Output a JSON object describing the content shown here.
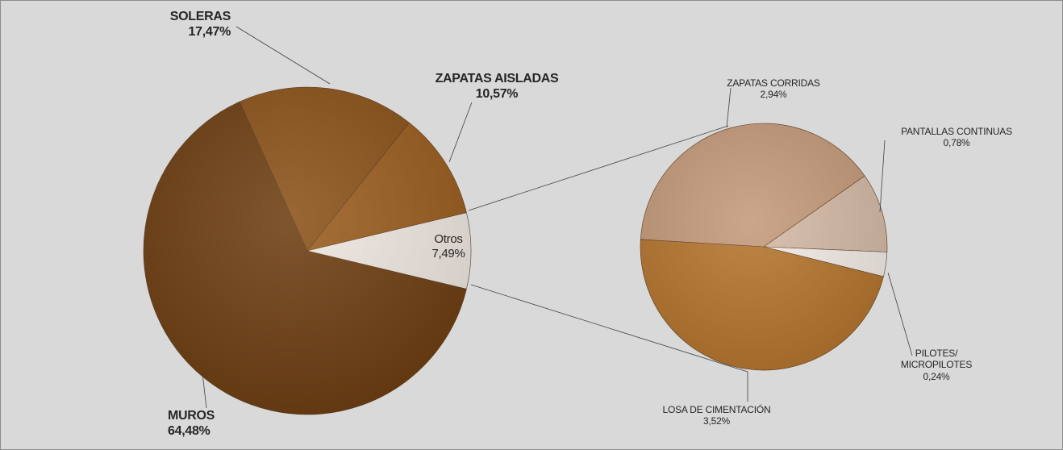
{
  "chart_data": [
    {
      "type": "pie",
      "categories": [
        "MUROS",
        "SOLERAS",
        "ZAPATAS AISLADAS",
        "Otros"
      ],
      "values": [
        64.48,
        17.47,
        10.57,
        7.49
      ],
      "value_labels": [
        "64,48%",
        "17,47%",
        "10,57%",
        "7,49%"
      ],
      "colors": [
        "#6e3e12",
        "#8b5219",
        "#9b5d1f",
        "#efe7e1"
      ]
    },
    {
      "type": "pie",
      "categories": [
        "ZAPATAS CORRIDAS",
        "PANTALLAS CONTINUAS",
        "PILOTES/ MICROPILOTES",
        "LOSA DE CIMENTACIÓN"
      ],
      "values": [
        2.94,
        0.78,
        0.24,
        3.52
      ],
      "value_labels": [
        "2,94%",
        "0,78%",
        "0,24%",
        "3,52%"
      ],
      "colors": [
        "#c49a7a",
        "#d5baa6",
        "#f3ece7",
        "#b5752e"
      ]
    }
  ]
}
